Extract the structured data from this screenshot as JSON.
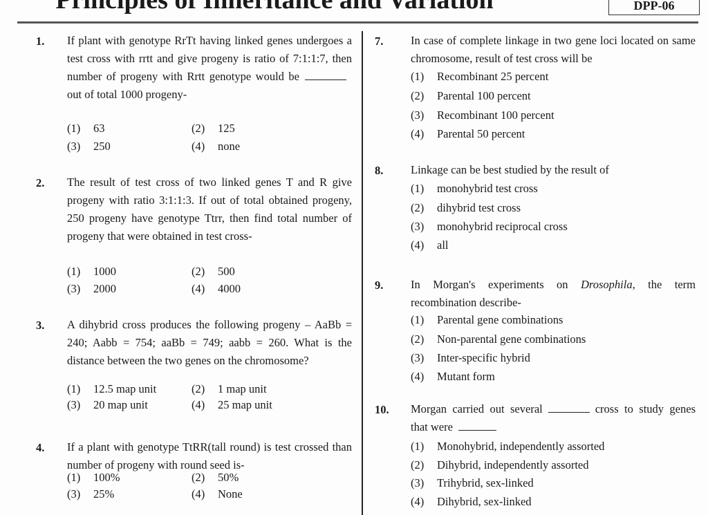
{
  "header": {
    "title": "Principles of Inheritance and Variation",
    "code": "DPP-06"
  },
  "questions": [
    {
      "num": "1.",
      "text_a": "If plant with genotype RrTt having linked genes undergoes a test cross with rrtt and give progeny is ratio of 7:1:1:7, then number of progeny with Rrtt genotype would be",
      "text_b": "out of total 1000 progeny-",
      "options": [
        [
          "(1)",
          "63"
        ],
        [
          "(2)",
          "125"
        ],
        [
          "(3)",
          "250"
        ],
        [
          "(4)",
          "none"
        ]
      ]
    },
    {
      "num": "2.",
      "text": "The result of test cross of two linked genes T and R give progeny with ratio 3:1:1:3. If out of total obtained progeny, 250 progeny have genotype Ttrr, then find total number of progeny that were obtained in test cross-",
      "options": [
        [
          "(1)",
          "1000"
        ],
        [
          "(2)",
          "500"
        ],
        [
          "(3)",
          "2000"
        ],
        [
          "(4)",
          "4000"
        ]
      ]
    },
    {
      "num": "3.",
      "text": "A dihybrid cross produces the following progeny – AaBb = 240; Aabb = 754; aaBb = 749; aabb = 260. What is the distance between the two genes on the chromosome?",
      "options": [
        [
          "(1)",
          "12.5 map unit"
        ],
        [
          "(2)",
          "1 map unit"
        ],
        [
          "(3)",
          "20 map unit"
        ],
        [
          "(4)",
          "25 map unit"
        ]
      ]
    },
    {
      "num": "4.",
      "text": "If a plant with genotype TtRR(tall round) is test crossed than number of progeny with round seed is-",
      "options": [
        [
          "(1)",
          "100%"
        ],
        [
          "(2)",
          "50%"
        ],
        [
          "(3)",
          "25%"
        ],
        [
          "(4)",
          "None"
        ]
      ]
    },
    {
      "num": "7.",
      "text": "In case of complete linkage in two gene loci located on same chromosome, result of test cross will be",
      "options": [
        [
          "(1)",
          "Recombinant 25 percent"
        ],
        [
          "(2)",
          "Parental 100 percent"
        ],
        [
          "(3)",
          "Recombinant 100 percent"
        ],
        [
          "(4)",
          "Parental 50 percent"
        ]
      ]
    },
    {
      "num": "8.",
      "text": "Linkage can be best studied by the result of",
      "options": [
        [
          "(1)",
          "monohybrid test cross"
        ],
        [
          "(2)",
          "dihybrid test cross"
        ],
        [
          "(3)",
          "monohybrid reciprocal cross"
        ],
        [
          "(4)",
          "all"
        ]
      ]
    },
    {
      "num": "9.",
      "text_a": "In Morgan's experiments on",
      "text_italic": "Drosophila",
      "text_b": ", the term recombination describe-",
      "options": [
        [
          "(1)",
          "Parental gene combinations"
        ],
        [
          "(2)",
          "Non-parental gene combinations"
        ],
        [
          "(3)",
          "Inter-specific hybrid"
        ],
        [
          "(4)",
          "Mutant form"
        ]
      ]
    },
    {
      "num": "10.",
      "text_a": "Morgan carried out several",
      "text_b": "cross to study genes that were",
      "options": [
        [
          "(1)",
          "Monohybrid, independently assorted"
        ],
        [
          "(2)",
          "Dihybrid, independently assorted"
        ],
        [
          "(3)",
          "Trihybrid, sex-linked"
        ],
        [
          "(4)",
          "Dihybrid, sex-linked"
        ]
      ]
    }
  ]
}
